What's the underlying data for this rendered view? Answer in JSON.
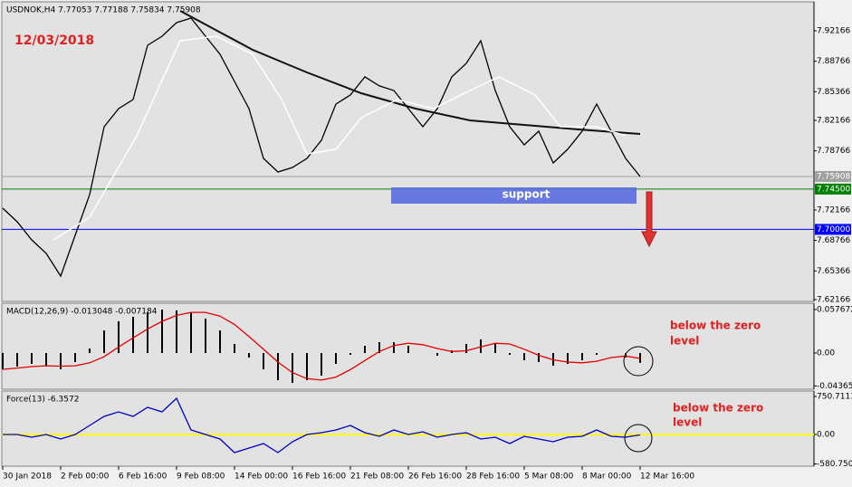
{
  "chart_data": [
    {
      "type": "line",
      "title": "USDNOK,H4  7.77053 7.77188 7.75834 7.75908",
      "annotation": "12/03/2018",
      "support_label": "support",
      "xlim": [
        0,
        224
      ],
      "ylim": [
        7.6196,
        7.954
      ],
      "yticks": [
        7.92166,
        7.88766,
        7.85366,
        7.82166,
        7.78766,
        7.72166,
        7.68766,
        7.65366,
        7.62166
      ],
      "levels": [
        {
          "value": 7.75908,
          "color": "#a0a0a0"
        },
        {
          "value": 7.745,
          "label": "7.74500",
          "color": "#008000"
        },
        {
          "value": 7.7,
          "label": "7.70000",
          "color": "#0000ff"
        }
      ],
      "series": [
        {
          "color": "#000000",
          "x": [
            0,
            4,
            8,
            12,
            16,
            20,
            24,
            28,
            32,
            36,
            40,
            44,
            48,
            52,
            56,
            60,
            64,
            68,
            72,
            76,
            80,
            84,
            88,
            92,
            96,
            100,
            104,
            108,
            112,
            116,
            120,
            124,
            128,
            132,
            136,
            140,
            144,
            148,
            152,
            156,
            160,
            164,
            168,
            172,
            176
          ],
          "values": [
            7.7237,
            7.7085,
            7.6883,
            7.6732,
            7.6479,
            7.6934,
            7.7388,
            7.8146,
            7.8348,
            7.8449,
            7.9055,
            7.9156,
            7.9308,
            7.9358,
            7.9156,
            7.8954,
            7.8651,
            7.8348,
            7.7792,
            7.7641,
            7.7691,
            7.7792,
            7.7995,
            7.8398,
            7.85,
            7.8702,
            7.8601,
            7.855,
            7.8348,
            7.8146,
            7.8348,
            7.8702,
            7.8853,
            7.9106,
            7.855,
            7.8146,
            7.7944,
            7.8096,
            7.7742,
            7.7894,
            7.8096,
            7.8398,
            7.8096,
            7.7792,
            7.759
          ]
        },
        {
          "color": "#111111",
          "width": 2,
          "x": [
            49,
            69,
            84,
            99,
            114,
            129,
            144,
            159,
            176
          ],
          "values": [
            7.9439,
            7.9005,
            7.8752,
            7.852,
            7.8348,
            7.8217,
            7.8166,
            7.8116,
            7.8065
          ]
        },
        {
          "color": "#ffffff",
          "width": 1.5,
          "x": [
            14,
            24,
            37,
            49,
            59,
            69,
            77,
            84,
            92,
            99,
            109,
            119,
            129,
            137,
            147,
            154,
            164,
            172
          ],
          "values": [
            7.6883,
            7.7136,
            7.8045,
            7.9106,
            7.9156,
            7.8954,
            7.8449,
            7.7843,
            7.7894,
            7.8247,
            7.8449,
            7.8348,
            7.855,
            7.8702,
            7.85,
            7.8146,
            7.8146,
            7.8045
          ]
        }
      ]
    },
    {
      "type": "macd",
      "title": "MACD(12,26,9) -0.013048 -0.007184",
      "annotation": [
        "below the zero",
        "level"
      ],
      "ylim": [
        -0.0481,
        0.0661
      ],
      "yticks": [
        0.057672,
        {
          "value": 0,
          "label": "0.00"
        },
        -0.043651
      ],
      "series": [
        {
          "color": "#000000",
          "x": [
            0,
            4,
            8,
            12,
            16,
            20,
            24,
            28,
            32,
            36,
            40,
            44,
            48,
            52,
            56,
            60,
            64,
            68,
            72,
            76,
            80,
            84,
            88,
            92,
            96,
            100,
            104,
            108,
            112,
            116,
            120,
            124,
            128,
            132,
            136,
            140,
            144,
            148,
            152,
            156,
            160,
            164,
            168,
            172,
            176
          ],
          "values": [
            -0.0216,
            -0.018,
            -0.0144,
            -0.0168,
            -0.0216,
            -0.012,
            0.006,
            0.03,
            0.0421,
            0.0481,
            0.0541,
            0.0577,
            0.0565,
            0.0541,
            0.0457,
            0.03,
            0.012,
            -0.006,
            -0.0216,
            -0.0361,
            -0.0397,
            -0.0361,
            -0.03,
            -0.0144,
            -0.0024,
            0.0096,
            0.0144,
            0.0144,
            0.0096,
            0,
            -0.0036,
            0.0036,
            0.012,
            0.018,
            0.012,
            -0.0024,
            -0.0096,
            -0.012,
            -0.0168,
            -0.0144,
            -0.0096,
            -0.0024,
            0,
            -0.006,
            -0.013
          ]
        },
        {
          "color": "#e00000",
          "x": [
            0,
            4,
            8,
            12,
            16,
            20,
            24,
            28,
            32,
            36,
            40,
            44,
            48,
            52,
            56,
            60,
            64,
            68,
            72,
            76,
            80,
            84,
            88,
            92,
            96,
            100,
            104,
            108,
            112,
            116,
            120,
            124,
            128,
            132,
            136,
            140,
            144,
            148,
            152,
            156,
            160,
            164,
            168,
            172,
            176
          ],
          "values": [
            -0.0216,
            -0.02,
            -0.018,
            -0.017,
            -0.0175,
            -0.017,
            -0.013,
            -0.005,
            0.008,
            0.02,
            0.032,
            0.042,
            0.05,
            0.054,
            0.054,
            0.049,
            0.038,
            0.022,
            0.005,
            -0.012,
            -0.026,
            -0.034,
            -0.036,
            -0.032,
            -0.022,
            -0.01,
            0.002,
            0.01,
            0.013,
            0.011,
            0.006,
            0.002,
            0.003,
            0.008,
            0.013,
            0.012,
            0.005,
            -0.003,
            -0.009,
            -0.012,
            -0.013,
            -0.011,
            -0.006,
            -0.004,
            -0.0072
          ]
        }
      ]
    },
    {
      "type": "line",
      "title": "Force(13) -6.3572",
      "annotation": [
        "below the zero",
        "level"
      ],
      "ylim": [
        -625,
        857
      ],
      "yticks": [
        750.7113,
        {
          "value": 0,
          "label": "0.00"
        },
        -580.7503
      ],
      "zero_color": "#ffff00",
      "xticks": [
        {
          "value": 0,
          "label": "30 Jan 2018"
        },
        {
          "value": 16,
          "label": "2 Feb 00:00"
        },
        {
          "value": 32,
          "label": "6 Feb 16:00"
        },
        {
          "value": 48,
          "label": "9 Feb 08:00"
        },
        {
          "value": 64,
          "label": "14 Feb 00:00"
        },
        {
          "value": 80,
          "label": "16 Feb 16:00"
        },
        {
          "value": 96,
          "label": "21 Feb 08:00"
        },
        {
          "value": 112,
          "label": "26 Feb 16:00"
        },
        {
          "value": 128,
          "label": "28 Feb 16:00"
        },
        {
          "value": 144,
          "label": "5 Mar 08:00"
        },
        {
          "value": 160,
          "label": "8 Mar 00:00"
        },
        {
          "value": 176,
          "label": "12 Mar 16:00"
        }
      ],
      "series": [
        {
          "color": "#0000c0",
          "x": [
            0,
            4,
            8,
            12,
            16,
            20,
            24,
            28,
            32,
            36,
            40,
            44,
            48,
            52,
            56,
            60,
            64,
            68,
            72,
            76,
            80,
            84,
            88,
            92,
            96,
            100,
            104,
            108,
            112,
            116,
            120,
            124,
            128,
            132,
            136,
            140,
            144,
            148,
            152,
            156,
            160,
            164,
            168,
            172,
            176
          ],
          "values": [
            0,
            0,
            -54,
            0,
            -89,
            0,
            179,
            357,
            447,
            357,
            536,
            447,
            714,
            89,
            0,
            -89,
            -357,
            -268,
            -179,
            -357,
            -143,
            0,
            36,
            89,
            179,
            36,
            -36,
            89,
            0,
            54,
            -54,
            0,
            36,
            -89,
            -54,
            -179,
            -36,
            -89,
            -143,
            -54,
            -36,
            89,
            -36,
            -54,
            -6.3572
          ]
        }
      ]
    }
  ]
}
